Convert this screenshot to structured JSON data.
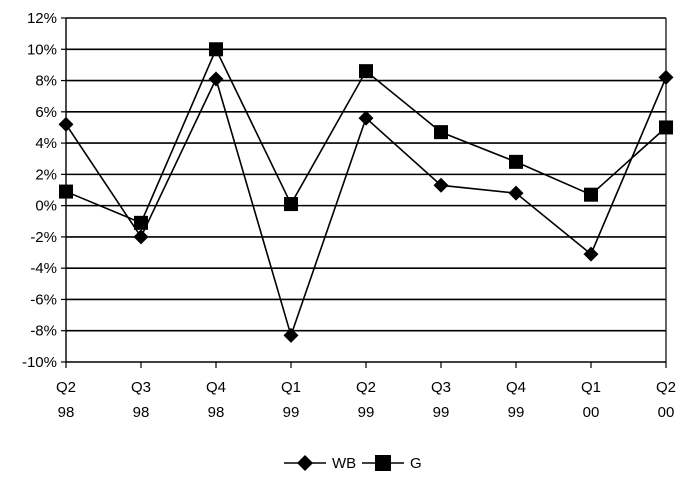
{
  "chart_data": {
    "type": "line",
    "categories": [
      [
        "Q2",
        "98"
      ],
      [
        "Q3",
        "98"
      ],
      [
        "Q4",
        "98"
      ],
      [
        "Q1",
        "99"
      ],
      [
        "Q2",
        "99"
      ],
      [
        "Q3",
        "99"
      ],
      [
        "Q4",
        "99"
      ],
      [
        "Q1",
        "00"
      ],
      [
        "Q2",
        "00"
      ]
    ],
    "y_ticks": [
      "12%",
      "10%",
      "8%",
      "6%",
      "4%",
      "2%",
      "0%",
      "-2%",
      "-4%",
      "-6%",
      "-8%",
      "-10%"
    ],
    "ylim": [
      -10,
      12
    ],
    "y_step": 2,
    "grid": true,
    "legend_position": "bottom-center",
    "series": [
      {
        "name": "WB",
        "marker": "diamond",
        "color": "#000000",
        "values": [
          5.2,
          -2.0,
          8.1,
          -8.3,
          5.6,
          1.3,
          0.8,
          -3.1,
          8.2
        ]
      },
      {
        "name": "G",
        "marker": "square",
        "color": "#000000",
        "values": [
          0.9,
          -1.1,
          10.0,
          0.1,
          8.6,
          4.7,
          2.8,
          0.7,
          5.0
        ]
      }
    ]
  }
}
